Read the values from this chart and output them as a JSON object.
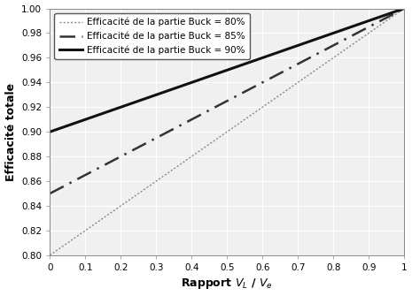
{
  "title": "",
  "xlabel": "Rapport $V_L$ / $V_e$",
  "ylabel": "Efficacité totale",
  "xlim": [
    0,
    1
  ],
  "ylim": [
    0.8,
    1.0
  ],
  "xticks": [
    0,
    0.1,
    0.2,
    0.3,
    0.4,
    0.5,
    0.6,
    0.7,
    0.8,
    0.9,
    1.0
  ],
  "yticks": [
    0.8,
    0.82,
    0.84,
    0.86,
    0.88,
    0.9,
    0.92,
    0.94,
    0.96,
    0.98,
    1.0
  ],
  "series": [
    {
      "label": "Efficacité de la partie Buck = 80%",
      "eta_buck": 0.8,
      "linestyle": "dotted",
      "color": "#888888",
      "linewidth": 1.0
    },
    {
      "label": "Efficacité de la partie Buck = 85%",
      "eta_buck": 0.85,
      "linestyle": "dashed",
      "color": "#333333",
      "linewidth": 1.8
    },
    {
      "label": "Efficacité de la partie Buck = 90%",
      "eta_buck": 0.9,
      "linestyle": "solid",
      "color": "#111111",
      "linewidth": 2.2
    }
  ],
  "legend_fontsize": 7.5,
  "axis_label_fontsize": 9,
  "tick_fontsize": 7.5,
  "background_color": "#ffffff",
  "plot_bg_color": "#f0f0f0",
  "grid_color": "#ffffff"
}
